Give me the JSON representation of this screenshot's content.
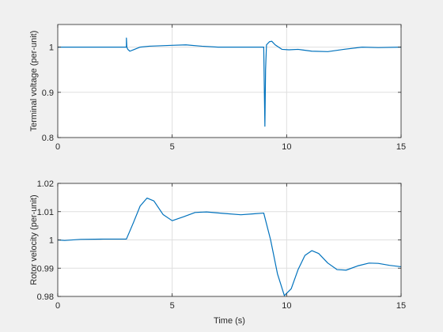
{
  "figure": {
    "background": "#f0f0f0"
  },
  "chart_data": [
    {
      "type": "line",
      "ylabel": "Terminal voltage (per-unit)",
      "xlabel": "",
      "xlim": [
        0,
        15
      ],
      "ylim": [
        0.8,
        1.05
      ],
      "xticks": [
        "0",
        "5",
        "10",
        "15"
      ],
      "yticks": [
        "0.8",
        "0.9",
        "1"
      ],
      "grid": true,
      "color": "#0072bd",
      "series": [
        {
          "x": [
            0,
            1,
            2,
            2.99,
            3.0,
            3.0,
            3.02,
            3.06,
            3.15,
            3.3,
            3.6,
            4.0,
            5.0,
            5.6,
            6.3,
            7,
            8,
            9.0,
            9.0,
            9.03,
            9.05,
            9.08,
            9.12,
            9.25,
            9.35,
            9.5,
            9.8,
            10.1,
            10.5,
            11.1,
            11.8,
            12.5,
            13.3,
            14.0,
            15
          ],
          "y": [
            1.0,
            1.0,
            1.0,
            1.0,
            1.0,
            1.02,
            1.0,
            0.995,
            0.991,
            0.994,
            1.0,
            1.002,
            1.004,
            1.005,
            1.002,
            1.0,
            1.0,
            1.0,
            0.998,
            0.89,
            0.825,
            0.95,
            1.005,
            1.012,
            1.013,
            1.005,
            0.995,
            0.994,
            0.995,
            0.991,
            0.99,
            0.995,
            1.0,
            0.999,
            1.0
          ]
        }
      ]
    },
    {
      "type": "line",
      "ylabel": "Rotor velocity (per-unit)",
      "xlabel": "Time (s)",
      "xlim": [
        0,
        15
      ],
      "ylim": [
        0.98,
        1.02
      ],
      "xticks": [
        "0",
        "5",
        "10",
        "15"
      ],
      "yticks": [
        "0.98",
        "0.99",
        "1",
        "1.01",
        "1.02"
      ],
      "grid": true,
      "color": "#0072bd",
      "series": [
        {
          "x": [
            0,
            0.3,
            1,
            2,
            3.0,
            3.3,
            3.6,
            3.9,
            4.2,
            4.6,
            5.0,
            5.5,
            6.0,
            6.5,
            7.2,
            8,
            8.5,
            9.0,
            9.3,
            9.6,
            9.9,
            10.2,
            10.5,
            10.8,
            11.1,
            11.4,
            11.8,
            12.2,
            12.6,
            13.1,
            13.6,
            14.0,
            14.5,
            15
          ],
          "y": [
            1.0,
            0.9998,
            1.0002,
            1.0003,
            1.0003,
            1.006,
            1.012,
            1.0148,
            1.0138,
            1.009,
            1.0068,
            1.0082,
            1.0097,
            1.0099,
            1.0094,
            1.0089,
            1.0092,
            1.0095,
            1.0,
            0.988,
            0.9803,
            0.9827,
            0.9895,
            0.9945,
            0.9962,
            0.9952,
            0.9918,
            0.9895,
            0.9893,
            0.9908,
            0.9918,
            0.9917,
            0.991,
            0.9905
          ]
        }
      ]
    }
  ]
}
